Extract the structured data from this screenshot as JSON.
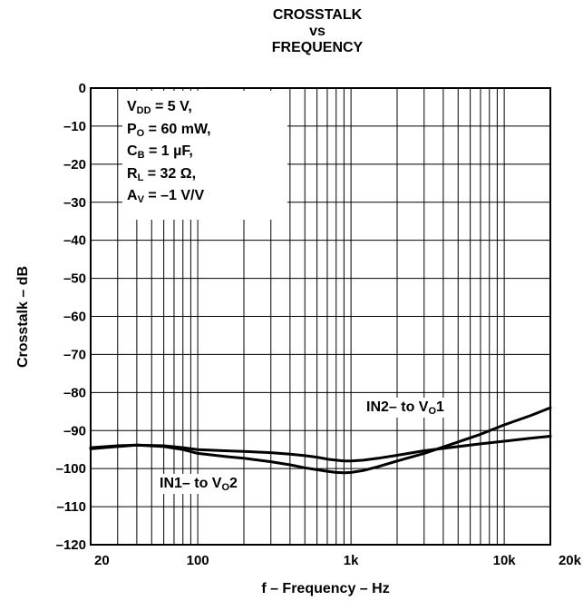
{
  "chart_data": {
    "type": "line",
    "title_lines": [
      "CROSSTALK",
      "vs",
      "FREQUENCY"
    ],
    "xlabel": "f – Frequency – Hz",
    "ylabel": "Crosstalk – dB",
    "x_scale": "log",
    "xlim": [
      20,
      20000
    ],
    "ylim": [
      -120,
      0
    ],
    "x_ticks": [
      {
        "value": 20,
        "label": "20"
      },
      {
        "value": 100,
        "label": "100"
      },
      {
        "value": 1000,
        "label": "1k"
      },
      {
        "value": 10000,
        "label": "10k"
      },
      {
        "value": 20000,
        "label": "20k"
      }
    ],
    "y_ticks": [
      {
        "value": 0,
        "label": "0"
      },
      {
        "value": -10,
        "label": "–10"
      },
      {
        "value": -20,
        "label": "–20"
      },
      {
        "value": -30,
        "label": "–30"
      },
      {
        "value": -40,
        "label": "–40"
      },
      {
        "value": -50,
        "label": "–50"
      },
      {
        "value": -60,
        "label": "–60"
      },
      {
        "value": -70,
        "label": "–70"
      },
      {
        "value": -80,
        "label": "–80"
      },
      {
        "value": -90,
        "label": "–90"
      },
      {
        "value": -100,
        "label": "–100"
      },
      {
        "value": -110,
        "label": "–110"
      },
      {
        "value": -120,
        "label": "–120"
      }
    ],
    "grid": true,
    "conditions": {
      "vdd": {
        "sym": "V",
        "sub": "DD",
        "rest": " = 5 V,"
      },
      "po": {
        "sym": "P",
        "sub": "O",
        "rest": " = 60 mW,"
      },
      "cb": {
        "sym": "C",
        "sub": "B",
        "rest": " = 1 µF,"
      },
      "rl": {
        "sym": "R",
        "sub": "L",
        "rest": " = 32 Ω,"
      },
      "av": {
        "sym": "A",
        "sub": "V",
        "rest": " = –1 V/V"
      }
    },
    "series": [
      {
        "label_pre": "IN2– to V",
        "label_sub": "O",
        "label_post": "1",
        "x": [
          20,
          30,
          40,
          60,
          80,
          100,
          150,
          200,
          300,
          400,
          500,
          600,
          700,
          800,
          900,
          1000,
          1200,
          1500,
          2000,
          3000,
          5000,
          7000,
          10000,
          15000,
          20000
        ],
        "y": [
          -94.5,
          -94,
          -93.8,
          -94,
          -94.5,
          -95,
          -95.3,
          -95.5,
          -95.8,
          -96.2,
          -96.6,
          -97,
          -97.5,
          -97.8,
          -98,
          -98,
          -97.8,
          -97.3,
          -96.5,
          -95.3,
          -94.2,
          -93.5,
          -92.8,
          -92,
          -91.5
        ]
      },
      {
        "label_pre": "IN1– to V",
        "label_sub": "O",
        "label_post": "2",
        "x": [
          20,
          30,
          40,
          60,
          80,
          100,
          150,
          200,
          300,
          400,
          500,
          600,
          700,
          800,
          900,
          1000,
          1200,
          1500,
          2000,
          3000,
          5000,
          7000,
          10000,
          15000,
          20000
        ],
        "y": [
          -94.8,
          -94.2,
          -93.8,
          -94.2,
          -95,
          -96,
          -96.8,
          -97.3,
          -98.2,
          -99,
          -99.8,
          -100.3,
          -100.7,
          -101,
          -101.1,
          -101,
          -100.5,
          -99.5,
          -98,
          -96,
          -93,
          -91,
          -88.5,
          -86,
          -84
        ]
      }
    ]
  }
}
